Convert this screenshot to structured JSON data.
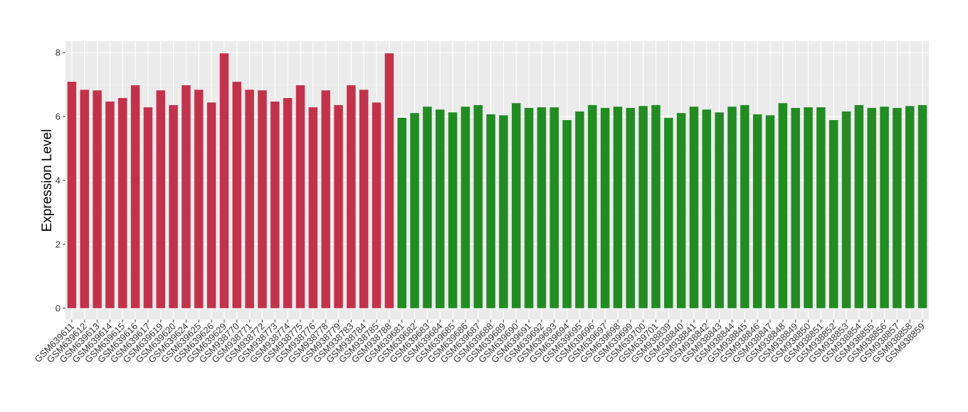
{
  "chart_data": {
    "type": "bar",
    "y_label": "Expression Level",
    "categories": [
      "GSM639611",
      "GSM639612",
      "GSM639613",
      "GSM639614",
      "GSM639615",
      "GSM639616",
      "GSM639617",
      "GSM639619",
      "GSM639620",
      "GSM639624",
      "GSM639625",
      "GSM639626",
      "GSM639629",
      "GSM938770",
      "GSM938771",
      "GSM938772",
      "GSM938773",
      "GSM938774",
      "GSM938775",
      "GSM938776",
      "GSM938778",
      "GSM938779",
      "GSM938783",
      "GSM938784",
      "GSM938785",
      "GSM938788",
      "GSM639681",
      "GSM639682",
      "GSM639683",
      "GSM639684",
      "GSM639685",
      "GSM639686",
      "GSM639687",
      "GSM639688",
      "GSM639689",
      "GSM639690",
      "GSM639691",
      "GSM639692",
      "GSM639693",
      "GSM639694",
      "GSM639695",
      "GSM639696",
      "GSM639697",
      "GSM639698",
      "GSM639699",
      "GSM639700",
      "GSM639701",
      "GSM938839",
      "GSM938840",
      "GSM938841",
      "GSM938842",
      "GSM938843",
      "GSM938844",
      "GSM938845",
      "GSM938846",
      "GSM938847",
      "GSM938848",
      "GSM938849",
      "GSM938850",
      "GSM938851",
      "GSM938852",
      "GSM938853",
      "GSM938854",
      "GSM938855",
      "GSM938856",
      "GSM938857",
      "GSM938858",
      "GSM938859"
    ],
    "values": [
      7.09,
      6.84,
      6.82,
      6.47,
      6.58,
      6.98,
      6.29,
      6.82,
      6.36,
      6.98,
      6.84,
      6.44,
      7.98,
      7.09,
      6.84,
      6.82,
      6.47,
      6.58,
      6.98,
      6.29,
      6.82,
      6.36,
      6.98,
      6.84,
      6.44,
      7.98,
      5.96,
      6.11,
      6.31,
      6.22,
      6.13,
      6.31,
      6.36,
      6.07,
      6.04,
      6.42,
      6.27,
      6.29,
      6.29,
      5.89,
      6.16,
      6.36,
      6.27,
      6.31,
      6.27,
      6.33,
      6.36,
      5.96,
      6.11,
      6.31,
      6.22,
      6.13,
      6.31,
      6.36,
      6.07,
      6.04,
      6.42,
      6.27,
      6.29,
      6.29,
      5.89,
      6.16,
      6.36,
      6.27,
      6.31,
      6.27,
      6.33,
      6.36
    ],
    "bar_colors": [
      "#c3324b",
      "#c3324b",
      "#c3324b",
      "#c3324b",
      "#c3324b",
      "#c3324b",
      "#c3324b",
      "#c3324b",
      "#c3324b",
      "#c3324b",
      "#c3324b",
      "#c3324b",
      "#c3324b",
      "#c3324b",
      "#c3324b",
      "#c3324b",
      "#c3324b",
      "#c3324b",
      "#c3324b",
      "#c3324b",
      "#c3324b",
      "#c3324b",
      "#c3324b",
      "#c3324b",
      "#c3324b",
      "#c3324b",
      "#228b22",
      "#228b22",
      "#228b22",
      "#228b22",
      "#228b22",
      "#228b22",
      "#228b22",
      "#228b22",
      "#228b22",
      "#228b22",
      "#228b22",
      "#228b22",
      "#228b22",
      "#228b22",
      "#228b22",
      "#228b22",
      "#228b22",
      "#228b22",
      "#228b22",
      "#228b22",
      "#228b22",
      "#228b22",
      "#228b22",
      "#228b22",
      "#228b22",
      "#228b22",
      "#228b22",
      "#228b22",
      "#228b22",
      "#228b22",
      "#228b22",
      "#228b22",
      "#228b22",
      "#228b22",
      "#228b22",
      "#228b22",
      "#228b22",
      "#228b22",
      "#228b22",
      "#228b22",
      "#228b22",
      "#228b22"
    ],
    "ylim": [
      -0.36,
      8.36
    ],
    "yticks": [
      0,
      2,
      4,
      6,
      8
    ],
    "grid": true
  }
}
